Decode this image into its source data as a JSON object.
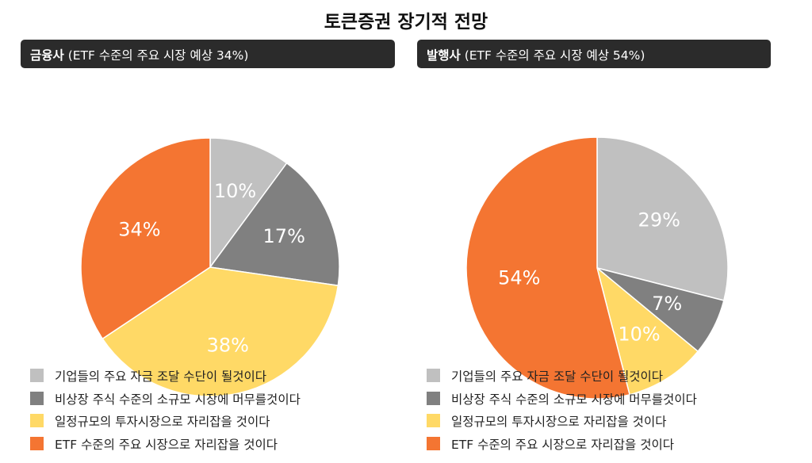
{
  "title": "토큰증권 장기적 전망",
  "colors": {
    "gray_light": "#c0c0c0",
    "gray_dark": "#808080",
    "yellow": "#ffd966",
    "orange": "#f47532",
    "header_bg": "#2b2b2b"
  },
  "panels": [
    {
      "who": "금융사",
      "note": "(ETF 수준의 주요 시장 예상 34%)"
    },
    {
      "who": "발행사",
      "note": "(ETF 수준의 주요 시장 예상 54%)"
    }
  ],
  "chart_data": [
    {
      "type": "pie",
      "title": "금융사 (ETF 수준의 주요 시장 예상 34%)",
      "categories": [
        "기업들의 주요 자금 조달 수단이 될것이다",
        "비상장 주식 수준의 소규모 시장에 머무를것이다",
        "일정규모의 투자시장으로 자리잡을 것이다",
        "ETF 수준의 주요 시장으로 자리잡을 것이다"
      ],
      "values": [
        10,
        17,
        38,
        34
      ],
      "labels": [
        "10%",
        "17%",
        "38%",
        "34%"
      ],
      "colors": [
        "#c0c0c0",
        "#808080",
        "#ffd966",
        "#f47532"
      ],
      "legend": "bottom"
    },
    {
      "type": "pie",
      "title": "발행사 (ETF 수준의 주요 시장 예상 54%)",
      "categories": [
        "기업들의 주요 자금 조달 수단이 될것이다",
        "비상장 주식 수준의 소규모 시장에 머무를것이다",
        "일정규모의 투자시장으로 자리잡을 것이다",
        "ETF 수준의 주요 시장으로 자리잡을 것이다"
      ],
      "values": [
        29,
        7,
        10,
        54
      ],
      "labels": [
        "29%",
        "7%",
        "10%",
        "54%"
      ],
      "colors": [
        "#c0c0c0",
        "#808080",
        "#ffd966",
        "#f47532"
      ],
      "legend": "bottom"
    }
  ]
}
